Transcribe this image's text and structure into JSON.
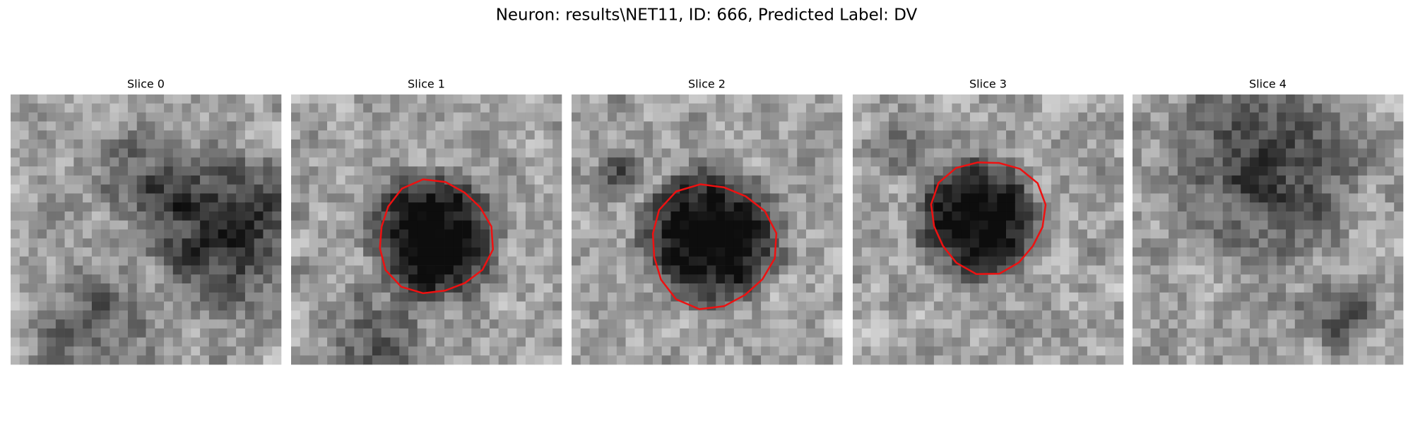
{
  "title": "Neuron: results\\NET11, ID: 666, Predicted Label: DV",
  "panels": [
    {
      "title": "Slice 0"
    },
    {
      "title": "Slice 1"
    },
    {
      "title": "Slice 2"
    },
    {
      "title": "Slice 3"
    },
    {
      "title": "Slice 4"
    }
  ]
}
